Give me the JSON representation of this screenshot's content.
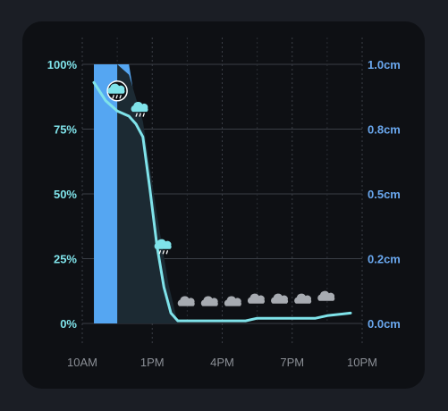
{
  "chart_data": {
    "type": "area",
    "x_ticks": [
      "10AM",
      "1PM",
      "4PM",
      "7PM",
      "10PM"
    ],
    "x_tick_hours": [
      10,
      13,
      16,
      19,
      22
    ],
    "xlim": [
      10,
      22
    ],
    "left_axis": {
      "ticks": [
        "0%",
        "25%",
        "50%",
        "75%",
        "100%"
      ],
      "tick_values": [
        0,
        25,
        50,
        75,
        100
      ],
      "range": [
        0,
        100
      ],
      "color": "#7fe3ea"
    },
    "right_axis": {
      "ticks": [
        "0.0cm",
        "0.2cm",
        "0.5cm",
        "0.8cm",
        "1.0cm"
      ],
      "tick_values": [
        0,
        0.25,
        0.5,
        0.75,
        1.0
      ],
      "range": [
        0,
        1.0
      ],
      "color": "#6aa8ef"
    },
    "grid": true,
    "series": [
      {
        "type": "area",
        "axis": "right",
        "color": "#55a6f2",
        "points": [
          [
            10.5,
            1.0
          ],
          [
            12.0,
            1.0
          ],
          [
            12.5,
            0.72
          ],
          [
            13.0,
            0.42
          ],
          [
            13.5,
            0.15
          ],
          [
            13.8,
            0.0
          ]
        ]
      },
      {
        "type": "area",
        "axis": "right",
        "color": "#1c2a33",
        "points": [
          [
            11.5,
            1.0
          ],
          [
            12.0,
            0.96
          ],
          [
            12.6,
            0.78
          ],
          [
            13.2,
            0.42
          ],
          [
            13.7,
            0.15
          ],
          [
            14.1,
            0.0
          ]
        ]
      },
      {
        "type": "line",
        "axis": "left",
        "color": "#7fe3ea",
        "points": [
          [
            10.5,
            93
          ],
          [
            11.0,
            86
          ],
          [
            11.5,
            82
          ],
          [
            12.0,
            80
          ],
          [
            12.3,
            77
          ],
          [
            12.6,
            72
          ],
          [
            12.9,
            52
          ],
          [
            13.2,
            30
          ],
          [
            13.5,
            14
          ],
          [
            13.8,
            4
          ],
          [
            14.1,
            1
          ],
          [
            15.0,
            1
          ],
          [
            16.0,
            1
          ],
          [
            17.0,
            1
          ],
          [
            17.5,
            2
          ],
          [
            18.5,
            2
          ],
          [
            19.5,
            2
          ],
          [
            20.0,
            2
          ],
          [
            20.5,
            3
          ],
          [
            21.5,
            4
          ]
        ]
      }
    ],
    "weather_icons": [
      {
        "hour": 11.5,
        "icon": "rain-cloud-icon",
        "value": 88,
        "highlighted": true
      },
      {
        "hour": 12.5,
        "icon": "rain-cloud-icon",
        "value": 81
      },
      {
        "hour": 13.5,
        "icon": "rain-cloud-icon",
        "value": 28
      },
      {
        "hour": 14.5,
        "icon": "cloud-icon",
        "value": 6
      },
      {
        "hour": 15.5,
        "icon": "cloud-icon",
        "value": 6
      },
      {
        "hour": 16.5,
        "icon": "cloud-icon",
        "value": 6
      },
      {
        "hour": 17.5,
        "icon": "cloud-icon",
        "value": 7
      },
      {
        "hour": 18.5,
        "icon": "cloud-icon",
        "value": 7
      },
      {
        "hour": 19.5,
        "icon": "cloud-icon",
        "value": 7
      },
      {
        "hour": 20.5,
        "icon": "cloud-icon",
        "value": 8
      }
    ]
  }
}
